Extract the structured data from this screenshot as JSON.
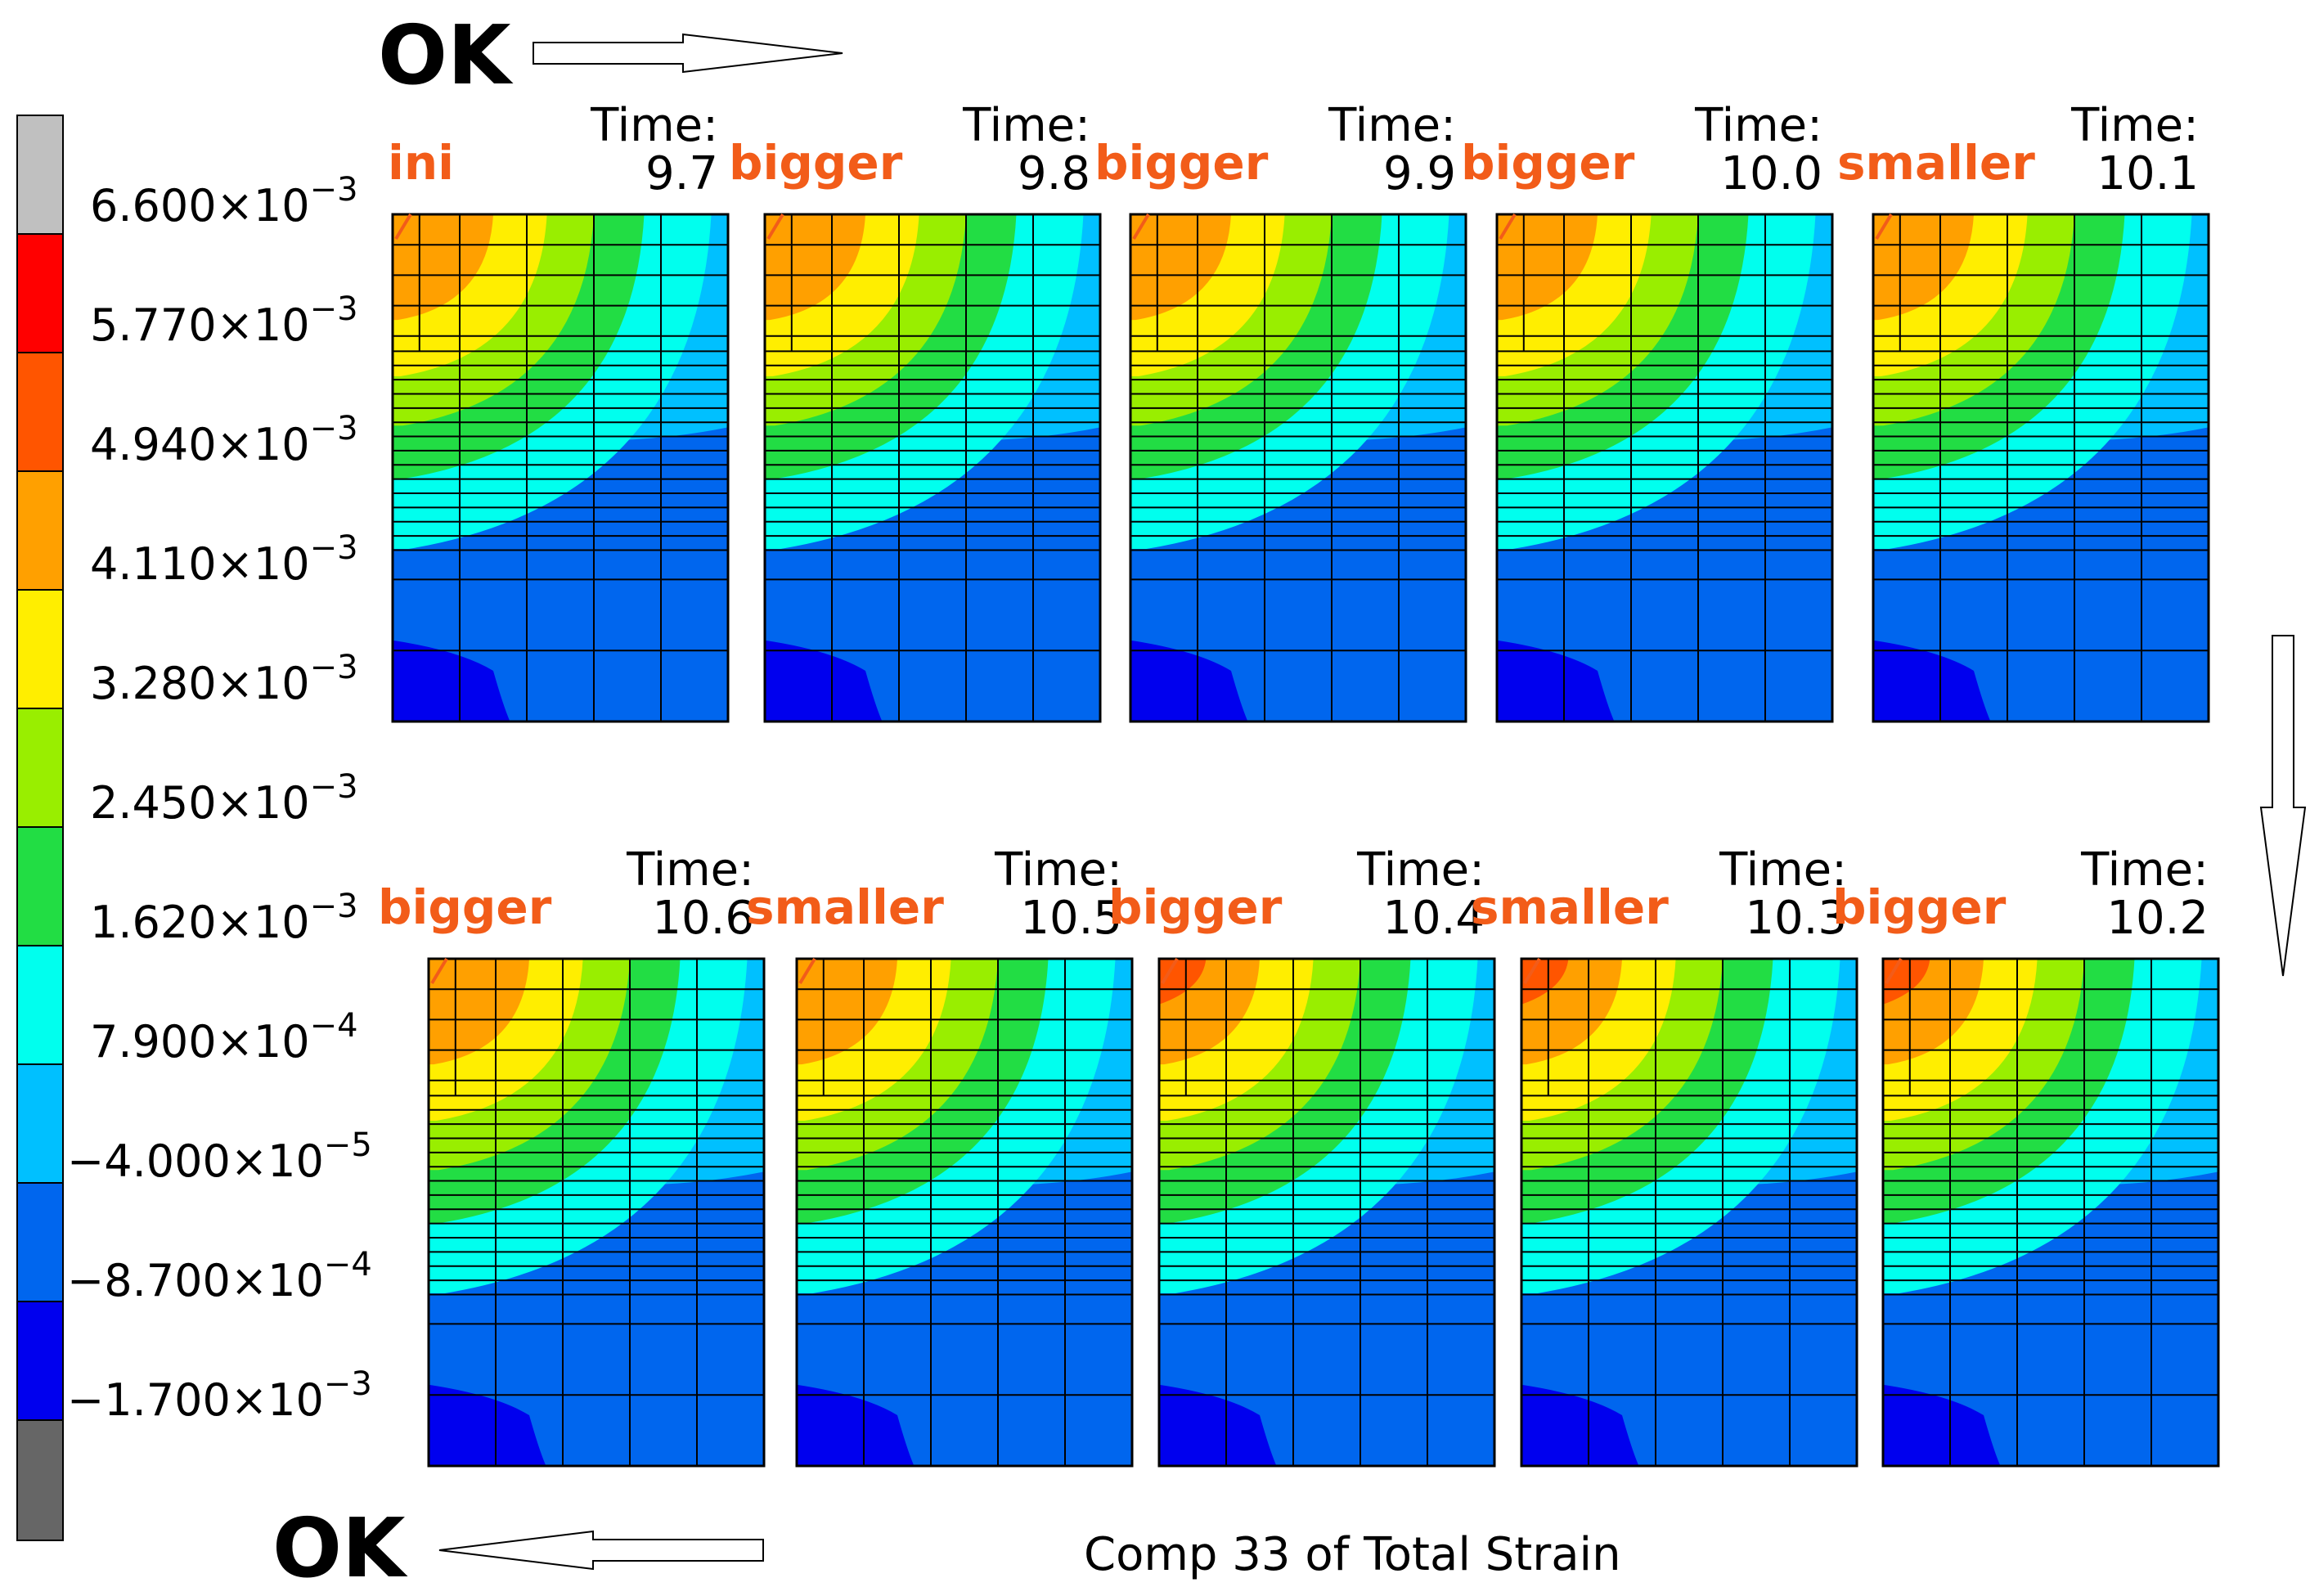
{
  "title": "Comp 33 of Total Strain",
  "legend": {
    "colors": [
      "#c0c0c0",
      "#ff0000",
      "#ff5500",
      "#ffa000",
      "#ffee00",
      "#99ee00",
      "#22dd44",
      "#00ffee",
      "#00c0ff",
      "#0066ee",
      "#0000ee",
      "#666666"
    ],
    "labels": [
      {
        "mantissa": "6.600×10",
        "exp": "−3"
      },
      {
        "mantissa": "5.770×10",
        "exp": "−3"
      },
      {
        "mantissa": "4.940×10",
        "exp": "−3"
      },
      {
        "mantissa": "4.110×10",
        "exp": "−3"
      },
      {
        "mantissa": "3.280×10",
        "exp": "−3"
      },
      {
        "mantissa": "2.450×10",
        "exp": "−3"
      },
      {
        "mantissa": "1.620×10",
        "exp": "−3"
      },
      {
        "mantissa": "7.900×10",
        "exp": "−4"
      },
      {
        "mantissa": "−4.000×10",
        "exp": "−5"
      },
      {
        "mantissa": "−8.700×10",
        "exp": "−4"
      },
      {
        "mantissa": "−1.700×10",
        "exp": "−3"
      }
    ]
  },
  "flow": {
    "top_ok": "OK",
    "bottom_ok": "OK"
  },
  "panels": [
    {
      "time": "Time:\n9.7",
      "annotation": "ini",
      "peak": "#ffa000"
    },
    {
      "time": "Time:\n9.8",
      "annotation": "bigger",
      "peak": "#ffa000"
    },
    {
      "time": "Time:\n9.9",
      "annotation": "bigger",
      "peak": "#ffa000"
    },
    {
      "time": "Time:\n10.0",
      "annotation": "bigger",
      "peak": "#ffa000"
    },
    {
      "time": "Time:\n10.1",
      "annotation": "smaller",
      "peak": "#ffa000"
    },
    {
      "time": "Time:\n10.6",
      "annotation": "bigger",
      "peak": "#ffa000"
    },
    {
      "time": "Time:\n10.5",
      "annotation": "smaller",
      "peak": "#ffa000"
    },
    {
      "time": "Time:\n10.4",
      "annotation": "bigger",
      "peak": "#ff5500"
    },
    {
      "time": "Time:\n10.3",
      "annotation": "smaller",
      "peak": "#ff5500"
    },
    {
      "time": "Time:\n10.2",
      "annotation": "bigger",
      "peak": "#ff5500"
    }
  ]
}
